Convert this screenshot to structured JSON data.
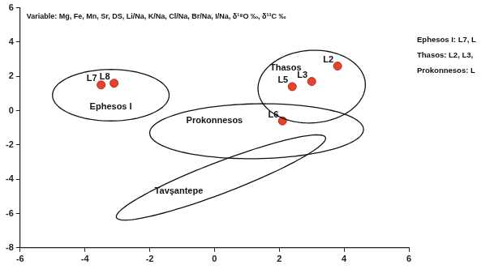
{
  "chart_data": {
    "type": "scatter",
    "subtitle": "Variable: Mg, Fe, Mn, Sr, DS, Li/Na, K/Na, Cl/Na, Br/Na, I/Na, δ¹⁸O ‰, δ¹³C ‰",
    "x": [
      -3.5,
      -3.1,
      3.8,
      2.4,
      3.0,
      2.1
    ],
    "values": [
      1.5,
      1.6,
      2.6,
      1.4,
      1.7,
      -0.6
    ],
    "point_labels": [
      "L7",
      "L8",
      "L2",
      "L5",
      "L3",
      "L6"
    ],
    "color": "#e8412c",
    "marker": "circle",
    "regions": [
      {
        "name": "Ephesos I",
        "center": [
          -3.2,
          0.9
        ],
        "axis1": [
          1.8,
          0
        ],
        "axis2": [
          0,
          1.5
        ],
        "label_at": [
          -3.2,
          0.2
        ]
      },
      {
        "name": "Thasos",
        "center": [
          3.0,
          1.4
        ],
        "axis1": [
          1.65,
          0.3
        ],
        "axis2": [
          -0.15,
          2.1
        ],
        "label_at": [
          2.2,
          2.5
        ]
      },
      {
        "name": "Prokonnesos",
        "center": [
          1.3,
          -1.2
        ],
        "axis1": [
          3.3,
          0.1
        ],
        "axis2": [
          0,
          1.6
        ],
        "label_at": [
          0.0,
          -0.6
        ]
      },
      {
        "name": "Tavşantepe",
        "center": [
          0.2,
          -3.9
        ],
        "axis1": [
          3.2,
          2.4
        ],
        "axis2": [
          -0.45,
          0.65
        ],
        "label_at": [
          -1.1,
          -4.7
        ]
      }
    ],
    "notes": [
      "Ephesos I: L7, L",
      "Thasos: L2, L3,",
      "Prokonnesos: L"
    ],
    "xlim": [
      -6,
      6
    ],
    "ylim": [
      -8,
      6
    ],
    "xticks": [
      -6,
      -4,
      -2,
      0,
      2,
      4,
      6
    ],
    "yticks": [
      -8,
      -6,
      -4,
      -2,
      0,
      2,
      4,
      6
    ],
    "grid": false
  }
}
